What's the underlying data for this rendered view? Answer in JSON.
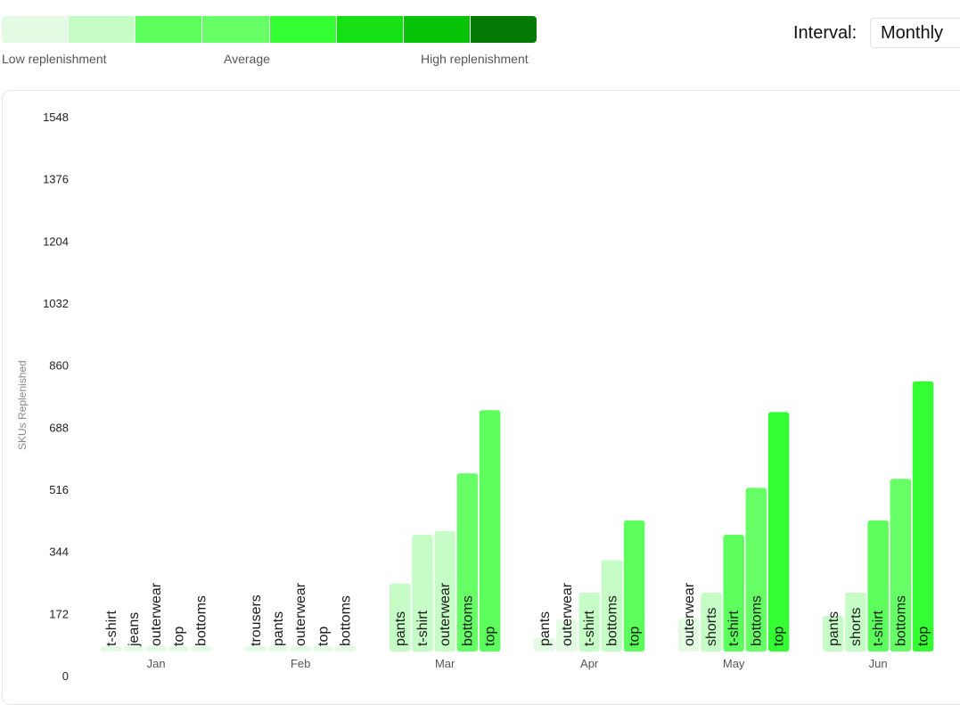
{
  "legend": {
    "swatches": [
      "#e3fae3",
      "#c6fcc6",
      "#5cff5c",
      "#66ff66",
      "#33ff33",
      "#14e014",
      "#08c408",
      "#047a04"
    ],
    "low_label": "Low replenishment",
    "mid_label": "Average",
    "high_label": "High replenishment"
  },
  "controls": {
    "interval_label": "Interval:",
    "interval_value": "Monthly"
  },
  "chart_data": {
    "type": "bar",
    "ylabel": "SKUs Replenished",
    "yticks": [
      0,
      172,
      344,
      516,
      688,
      860,
      1032,
      1204,
      1376,
      1548
    ],
    "ylim": [
      0,
      1548
    ],
    "groups": [
      {
        "month": "Jan",
        "bars": [
          {
            "label": "t-shirt",
            "value": 5,
            "color": "#e3fae3"
          },
          {
            "label": "jeans",
            "value": 5,
            "color": "#e3fae3"
          },
          {
            "label": "outerwear",
            "value": 5,
            "color": "#e3fae3"
          },
          {
            "label": "top",
            "value": 5,
            "color": "#e3fae3"
          },
          {
            "label": "bottoms",
            "value": 5,
            "color": "#e3fae3"
          }
        ]
      },
      {
        "month": "Feb",
        "bars": [
          {
            "label": "trousers",
            "value": 30,
            "color": "#e3fae3"
          },
          {
            "label": "pants",
            "value": 30,
            "color": "#e3fae3"
          },
          {
            "label": "outerwear",
            "value": 30,
            "color": "#e3fae3"
          },
          {
            "label": "top",
            "value": 60,
            "color": "#e3fae3"
          },
          {
            "label": "bottoms",
            "value": 60,
            "color": "#e3fae3"
          }
        ]
      },
      {
        "month": "Mar",
        "bars": [
          {
            "label": "pants",
            "value": 255,
            "color": "#c6fcc6"
          },
          {
            "label": "t-shirt",
            "value": 390,
            "color": "#c6fcc6"
          },
          {
            "label": "outerwear",
            "value": 400,
            "color": "#c6fcc6"
          },
          {
            "label": "bottoms",
            "value": 560,
            "color": "#66ff66"
          },
          {
            "label": "top",
            "value": 735,
            "color": "#5cff5c"
          }
        ]
      },
      {
        "month": "Apr",
        "bars": [
          {
            "label": "pants",
            "value": 105,
            "color": "#e3fae3"
          },
          {
            "label": "outerwear",
            "value": 155,
            "color": "#e3fae3"
          },
          {
            "label": "t-shirt",
            "value": 230,
            "color": "#c6fcc6"
          },
          {
            "label": "bottoms",
            "value": 320,
            "color": "#c6fcc6"
          },
          {
            "label": "top",
            "value": 430,
            "color": "#5cff5c"
          }
        ]
      },
      {
        "month": "May",
        "bars": [
          {
            "label": "outerwear",
            "value": 160,
            "color": "#e3fae3"
          },
          {
            "label": "shorts",
            "value": 230,
            "color": "#c6fcc6"
          },
          {
            "label": "t-shirt",
            "value": 390,
            "color": "#5cff5c"
          },
          {
            "label": "bottoms",
            "value": 520,
            "color": "#66ff66"
          },
          {
            "label": "top",
            "value": 730,
            "color": "#33ff33"
          }
        ]
      },
      {
        "month": "Jun",
        "bars": [
          {
            "label": "pants",
            "value": 165,
            "color": "#c6fcc6"
          },
          {
            "label": "shorts",
            "value": 230,
            "color": "#c6fcc6"
          },
          {
            "label": "t-shirt",
            "value": 430,
            "color": "#5cff5c"
          },
          {
            "label": "bottoms",
            "value": 545,
            "color": "#66ff66"
          },
          {
            "label": "top",
            "value": 815,
            "color": "#33ff33"
          }
        ]
      }
    ]
  }
}
